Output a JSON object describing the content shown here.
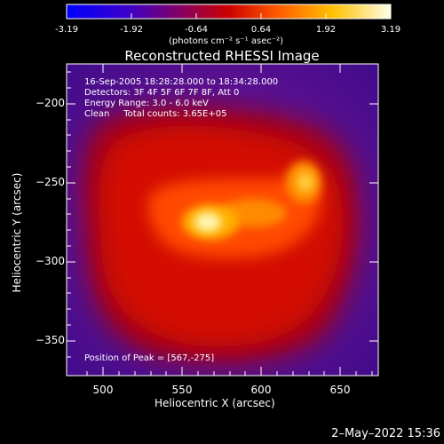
{
  "colorbar": {
    "ticks": [
      "-3.19",
      "-1.92",
      "-0.64",
      "0.64",
      "1.92",
      "3.19"
    ],
    "units_label": "(photons cm⁻² s⁻¹ asec⁻²)"
  },
  "image": {
    "title": "Reconstructed RHESSI Image",
    "info_lines": [
      "16-Sep-2005 18:28:28.000 to 18:34:28.000",
      "Detectors: 3F 4F 5F 6F 7F 8F, Att 0",
      "Energy Range: 3.0 - 6.0 keV",
      "Clean     Total counts: 3.65E+05"
    ],
    "peak_label": "Position of Peak = [567,-275]",
    "xlabel": "Heliocentric X (arcsec)",
    "ylabel": "Heliocentric Y (arcsec)",
    "xticks": [
      "500",
      "550",
      "600",
      "650"
    ],
    "yticks": [
      "−200",
      "−250",
      "−300",
      "−350"
    ],
    "peak_x": 567,
    "peak_y": -275
  },
  "footer": {
    "timestamp": "2–May–2022 15:36"
  }
}
